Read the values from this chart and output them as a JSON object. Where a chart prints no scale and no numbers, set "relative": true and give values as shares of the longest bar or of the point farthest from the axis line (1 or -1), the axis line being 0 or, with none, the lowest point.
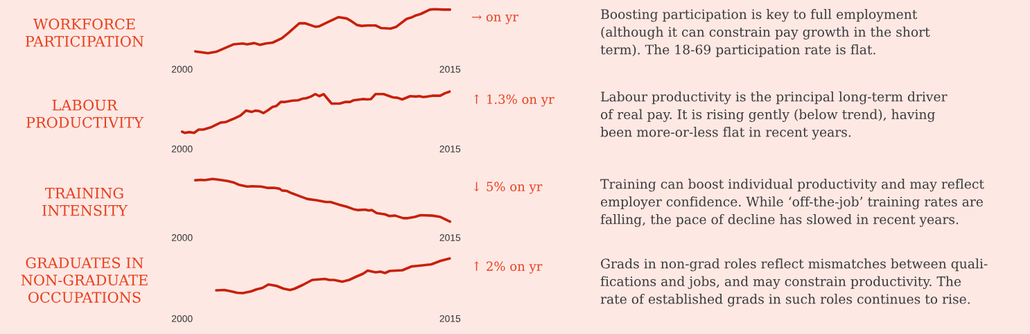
{
  "chart_data": [
    {
      "type": "line",
      "title": "WORKFORCE\nPARTICIPATION",
      "relative": true,
      "xlim": [
        2000,
        2015
      ],
      "xticks": [
        2000,
        2015
      ],
      "annotations": [
        "→ on yr",
        "Boosting participation is key to full employment\n(although it can constrain pay growth in the short\nterm). The 18-69 participation rate is flat."
      ],
      "series": [
        {
          "color": "#c8200a",
          "x": [
            2000.74,
            2001.45,
            2001.9,
            2002.87,
            2003.39,
            2003.65,
            2004.04,
            2004.36,
            2004.68,
            2005.07,
            2005.59,
            2005.98,
            2006.56,
            2006.88,
            2007.46,
            2007.66,
            2008.18,
            2008.76,
            2009.21,
            2009.47,
            2009.79,
            2010.05,
            2010.38,
            2010.83,
            2011.15,
            2011.67,
            2011.99,
            2012.57,
            2012.83,
            2013.09,
            2013.35,
            2013.87,
            2014.13,
            2014.64,
            2015.0
          ],
          "values": [
            0.04,
            0,
            0.03,
            0.2,
            0.22,
            0.2,
            0.23,
            0.19,
            0.22,
            0.24,
            0.34,
            0.47,
            0.68,
            0.68,
            0.6,
            0.61,
            0.71,
            0.82,
            0.79,
            0.73,
            0.64,
            0.62,
            0.63,
            0.63,
            0.57,
            0.56,
            0.6,
            0.78,
            0.81,
            0.86,
            0.89,
            0.99,
            1,
            0.99,
            0.99
          ]
        }
      ]
    },
    {
      "type": "line",
      "title": "LABOUR\nPRODUCTIVITY",
      "relative": true,
      "xlim": [
        2000,
        2015
      ],
      "xticks": [
        2000,
        2015
      ],
      "annotations": [
        "↑ 1.3% on yr",
        "Labour productivity is the principal long-term driver\nof real pay. It is rising gently (below trend), having\nbeen more-or-less flat in recent years."
      ],
      "series": [
        {
          "color": "#c8200a",
          "x": [
            2000.0,
            2000.16,
            2000.41,
            2000.67,
            2000.93,
            2001.19,
            2001.64,
            2002.16,
            2002.42,
            2002.87,
            2003.26,
            2003.58,
            2003.91,
            2004.1,
            2004.3,
            2004.55,
            2004.81,
            2005.07,
            2005.27,
            2005.52,
            2005.78,
            2006.17,
            2006.49,
            2006.75,
            2006.95,
            2007.21,
            2007.46,
            2007.68,
            2007.92,
            2008.37,
            2008.82,
            2009.15,
            2009.4,
            2009.6,
            2010.12,
            2010.38,
            2010.57,
            2010.83,
            2011.28,
            2011.8,
            2012.06,
            2012.32,
            2012.77,
            2013.09,
            2013.29,
            2013.48,
            2013.74,
            2014.0,
            2014.45,
            2014.71,
            2014.97
          ],
          "values": [
            0.03,
            0,
            0.02,
            0,
            0.08,
            0.08,
            0.14,
            0.25,
            0.26,
            0.34,
            0.42,
            0.54,
            0.51,
            0.54,
            0.53,
            0.48,
            0.55,
            0.63,
            0.65,
            0.75,
            0.75,
            0.78,
            0.79,
            0.83,
            0.84,
            0.88,
            0.94,
            0.89,
            0.94,
            0.71,
            0.71,
            0.75,
            0.75,
            0.79,
            0.82,
            0.81,
            0.82,
            0.94,
            0.94,
            0.86,
            0.85,
            0.81,
            0.89,
            0.88,
            0.89,
            0.87,
            0.88,
            0.9,
            0.9,
            0.96,
            1
          ]
        }
      ]
    },
    {
      "type": "line",
      "title": "TRAINING\nINTENSITY",
      "relative": true,
      "xlim": [
        2000,
        2015
      ],
      "xticks": [
        2000,
        2015
      ],
      "annotations": [
        "↓ 5% on yr",
        "Training can boost individual productivity and may reflect\nemployer confidence. While ‘off-the-job’ training rates are\nfalling, the pace of decline has slowed in recent years."
      ],
      "series": [
        {
          "color": "#c8200a",
          "x": [
            2000.74,
            2001.06,
            2001.25,
            2001.71,
            2002.1,
            2002.55,
            2002.87,
            2003.2,
            2003.65,
            2003.91,
            2004.42,
            2004.81,
            2005.2,
            2005.46,
            2005.59,
            2005.85,
            2006.11,
            2006.56,
            2007.01,
            2007.53,
            2008.05,
            2008.31,
            2008.76,
            2009.21,
            2009.6,
            2009.86,
            2010.25,
            2010.44,
            2010.63,
            2010.89,
            2011.35,
            2011.6,
            2011.93,
            2012.38,
            2012.64,
            2013.03,
            2013.35,
            2014.0,
            2014.45,
            2014.64,
            2015.0
          ],
          "values": [
            0.97,
            0.98,
            0.97,
            1,
            0.98,
            0.95,
            0.92,
            0.86,
            0.82,
            0.83,
            0.82,
            0.79,
            0.79,
            0.77,
            0.73,
            0.72,
            0.67,
            0.6,
            0.53,
            0.5,
            0.46,
            0.46,
            0.4,
            0.35,
            0.29,
            0.27,
            0.28,
            0.26,
            0.27,
            0.2,
            0.17,
            0.13,
            0.14,
            0.08,
            0.08,
            0.11,
            0.15,
            0.14,
            0.11,
            0.07,
            0
          ]
        }
      ]
    },
    {
      "type": "line",
      "title": "GRADUATES IN\nNON-GRADUATE\nOCCUPATIONS",
      "relative": true,
      "xlim": [
        2000,
        2015
      ],
      "xticks": [
        2000,
        2015
      ],
      "annotations": [
        "↑ 2% on yr",
        "Grads in non-grad roles reflect mismatches between quali-\nfications and jobs, and may constrain productivity. The\nrate of established grads in such roles continues to rise."
      ],
      "series": [
        {
          "color": "#c8200a",
          "x": [
            2001.91,
            2002.37,
            2002.76,
            2003.08,
            2003.4,
            2003.86,
            2004.18,
            2004.5,
            2004.83,
            2005.28,
            2005.67,
            2006.05,
            2006.31,
            2006.77,
            2007.28,
            2007.99,
            2008.25,
            2008.51,
            2008.96,
            2009.35,
            2009.68,
            2010.13,
            2010.39,
            2010.84,
            2011.1,
            2011.36,
            2011.62,
            2012.33,
            2012.85,
            2013.43,
            2013.95,
            2014.46,
            2014.98
          ],
          "values": [
            0.08,
            0.09,
            0.05,
            0.01,
            0,
            0.05,
            0.11,
            0.15,
            0.25,
            0.21,
            0.13,
            0.09,
            0.13,
            0.24,
            0.38,
            0.41,
            0.38,
            0.38,
            0.33,
            0.38,
            0.46,
            0.56,
            0.65,
            0.6,
            0.62,
            0.58,
            0.64,
            0.66,
            0.77,
            0.8,
            0.83,
            0.93,
            1
          ]
        }
      ]
    }
  ]
}
